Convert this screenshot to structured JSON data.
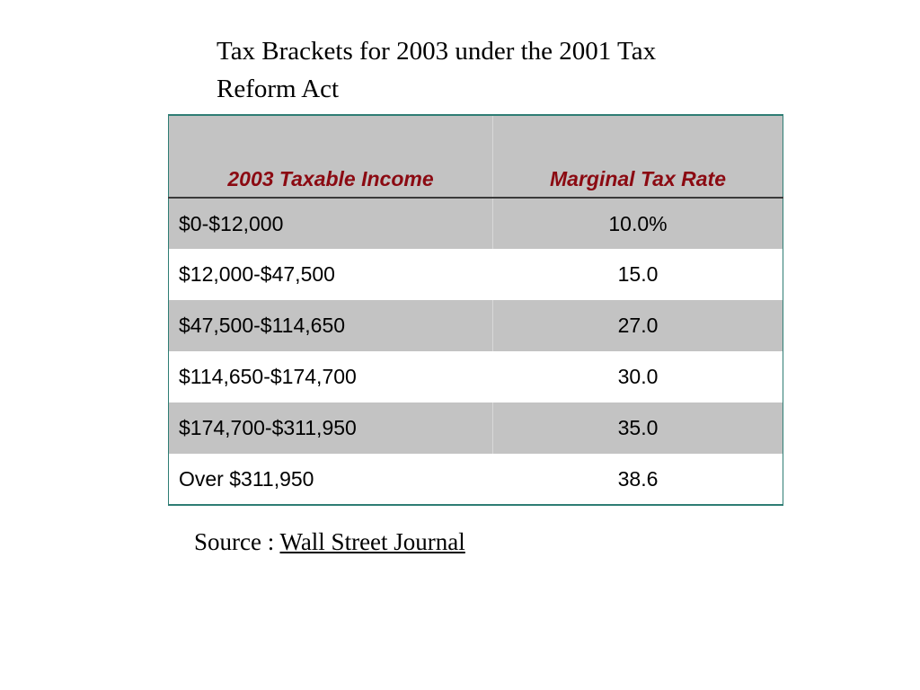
{
  "title": {
    "line1": "Tax Brackets for 2003 under the 2001 Tax",
    "line2": "Reform Act"
  },
  "table": {
    "headers": {
      "income": "2003 Taxable Income",
      "rate": "Marginal Tax Rate"
    },
    "rows": [
      {
        "income": "$0-$12,000",
        "rate": "10.0%"
      },
      {
        "income": "$12,000-$47,500",
        "rate": "15.0"
      },
      {
        "income": "$47,500-$114,650",
        "rate": "27.0"
      },
      {
        "income": "$114,650-$174,700",
        "rate": "30.0"
      },
      {
        "income": "$174,700-$311,950",
        "rate": "35.0"
      },
      {
        "income": "Over $311,950",
        "rate": "38.6"
      }
    ]
  },
  "source": {
    "label": "Source : ",
    "link_text": "Wall Street Journal"
  },
  "colors": {
    "header_text": "#8b0a12",
    "shaded_row": "#c3c3c3",
    "table_border": "#2e7d74"
  }
}
